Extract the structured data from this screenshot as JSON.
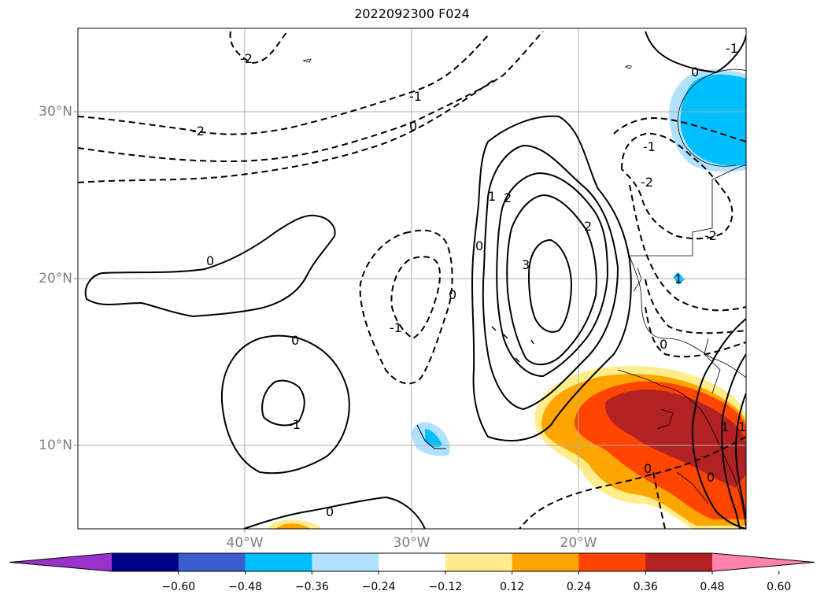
{
  "title": "2022092300 F024",
  "map": {
    "lat_labels": [
      "30°N",
      "20°N",
      "10°N"
    ],
    "lon_labels": [
      "40°W",
      "30°W",
      "20°W"
    ],
    "contour_labels": [
      "-2",
      "-2",
      "-1",
      "0",
      "-1",
      "0",
      "-2",
      "-1",
      "-2",
      "0",
      "1",
      "0",
      "0",
      "0",
      "-1",
      "0",
      "1",
      "2",
      "2",
      "3",
      "-1",
      "0",
      "0",
      "0",
      "1",
      "1"
    ]
  },
  "colorbar": {
    "ticks": [
      "−0.60",
      "−0.48",
      "−0.36",
      "−0.24",
      "−0.12",
      "0.12",
      "0.24",
      "0.36",
      "0.48",
      "0.60"
    ],
    "colors": [
      "#9932cc",
      "#00008b",
      "#3a5fcd",
      "#00bfff",
      "#b0e2ff",
      "#ffffff",
      "#ffec8b",
      "#ffa500",
      "#ff4500",
      "#b22222",
      "#ff82ab"
    ]
  }
}
